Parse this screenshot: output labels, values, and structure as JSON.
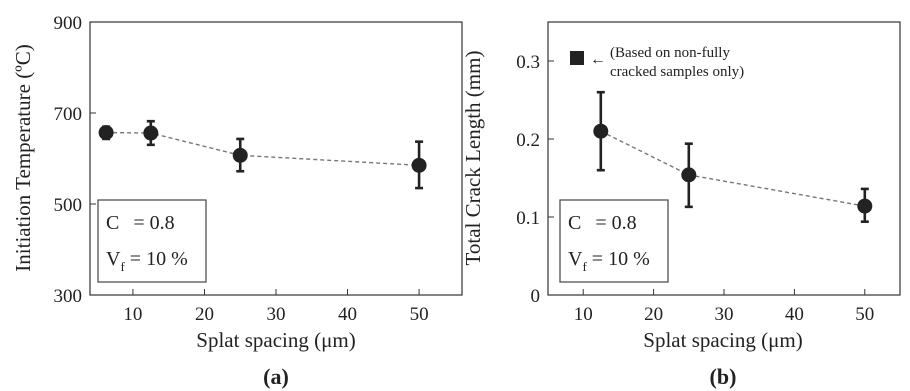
{
  "chart_data": [
    {
      "type": "scatter",
      "panel_label": "(a)",
      "xlabel": "Splat spacing (μm)",
      "ylabel": "Initiation Temperature (ºC)",
      "xlim": [
        4,
        56
      ],
      "ylim": [
        300,
        900
      ],
      "xticks": [
        10,
        20,
        30,
        40,
        50
      ],
      "yticks": [
        300,
        500,
        700,
        900
      ],
      "grid": false,
      "x": [
        6.25,
        12.5,
        25,
        50
      ],
      "y": [
        657,
        656,
        607,
        585
      ],
      "y_err_low": [
        643,
        630,
        572,
        535
      ],
      "y_err_high": [
        670,
        682,
        643,
        637
      ],
      "annotation": {
        "line1_sym": "C",
        "line1_val": "= 0.8",
        "line2_sym": "V",
        "line2_sub": "f",
        "line2_val": "= 10 %"
      }
    },
    {
      "type": "scatter",
      "panel_label": "(b)",
      "xlabel": "Splat spacing (μm)",
      "ylabel": "Total Crack Length (mm)",
      "xlim": [
        5,
        55
      ],
      "ylim": [
        0,
        0.35
      ],
      "xticks": [
        10,
        20,
        30,
        40,
        50
      ],
      "yticks": [
        0,
        0.1,
        0.2,
        0.3
      ],
      "grid": false,
      "x": [
        12.5,
        25,
        50
      ],
      "y": [
        0.21,
        0.154,
        0.114
      ],
      "y_err_low": [
        0.16,
        0.113,
        0.094
      ],
      "y_err_high": [
        0.26,
        0.194,
        0.136
      ],
      "legend_note": {
        "line1": "(Based on non-fully",
        "line2": "cracked samples only)"
      },
      "annotation": {
        "line1_sym": "C",
        "line1_val": "= 0.8",
        "line2_sym": "V",
        "line2_sub": "f",
        "line2_val": "= 10 %"
      }
    }
  ]
}
